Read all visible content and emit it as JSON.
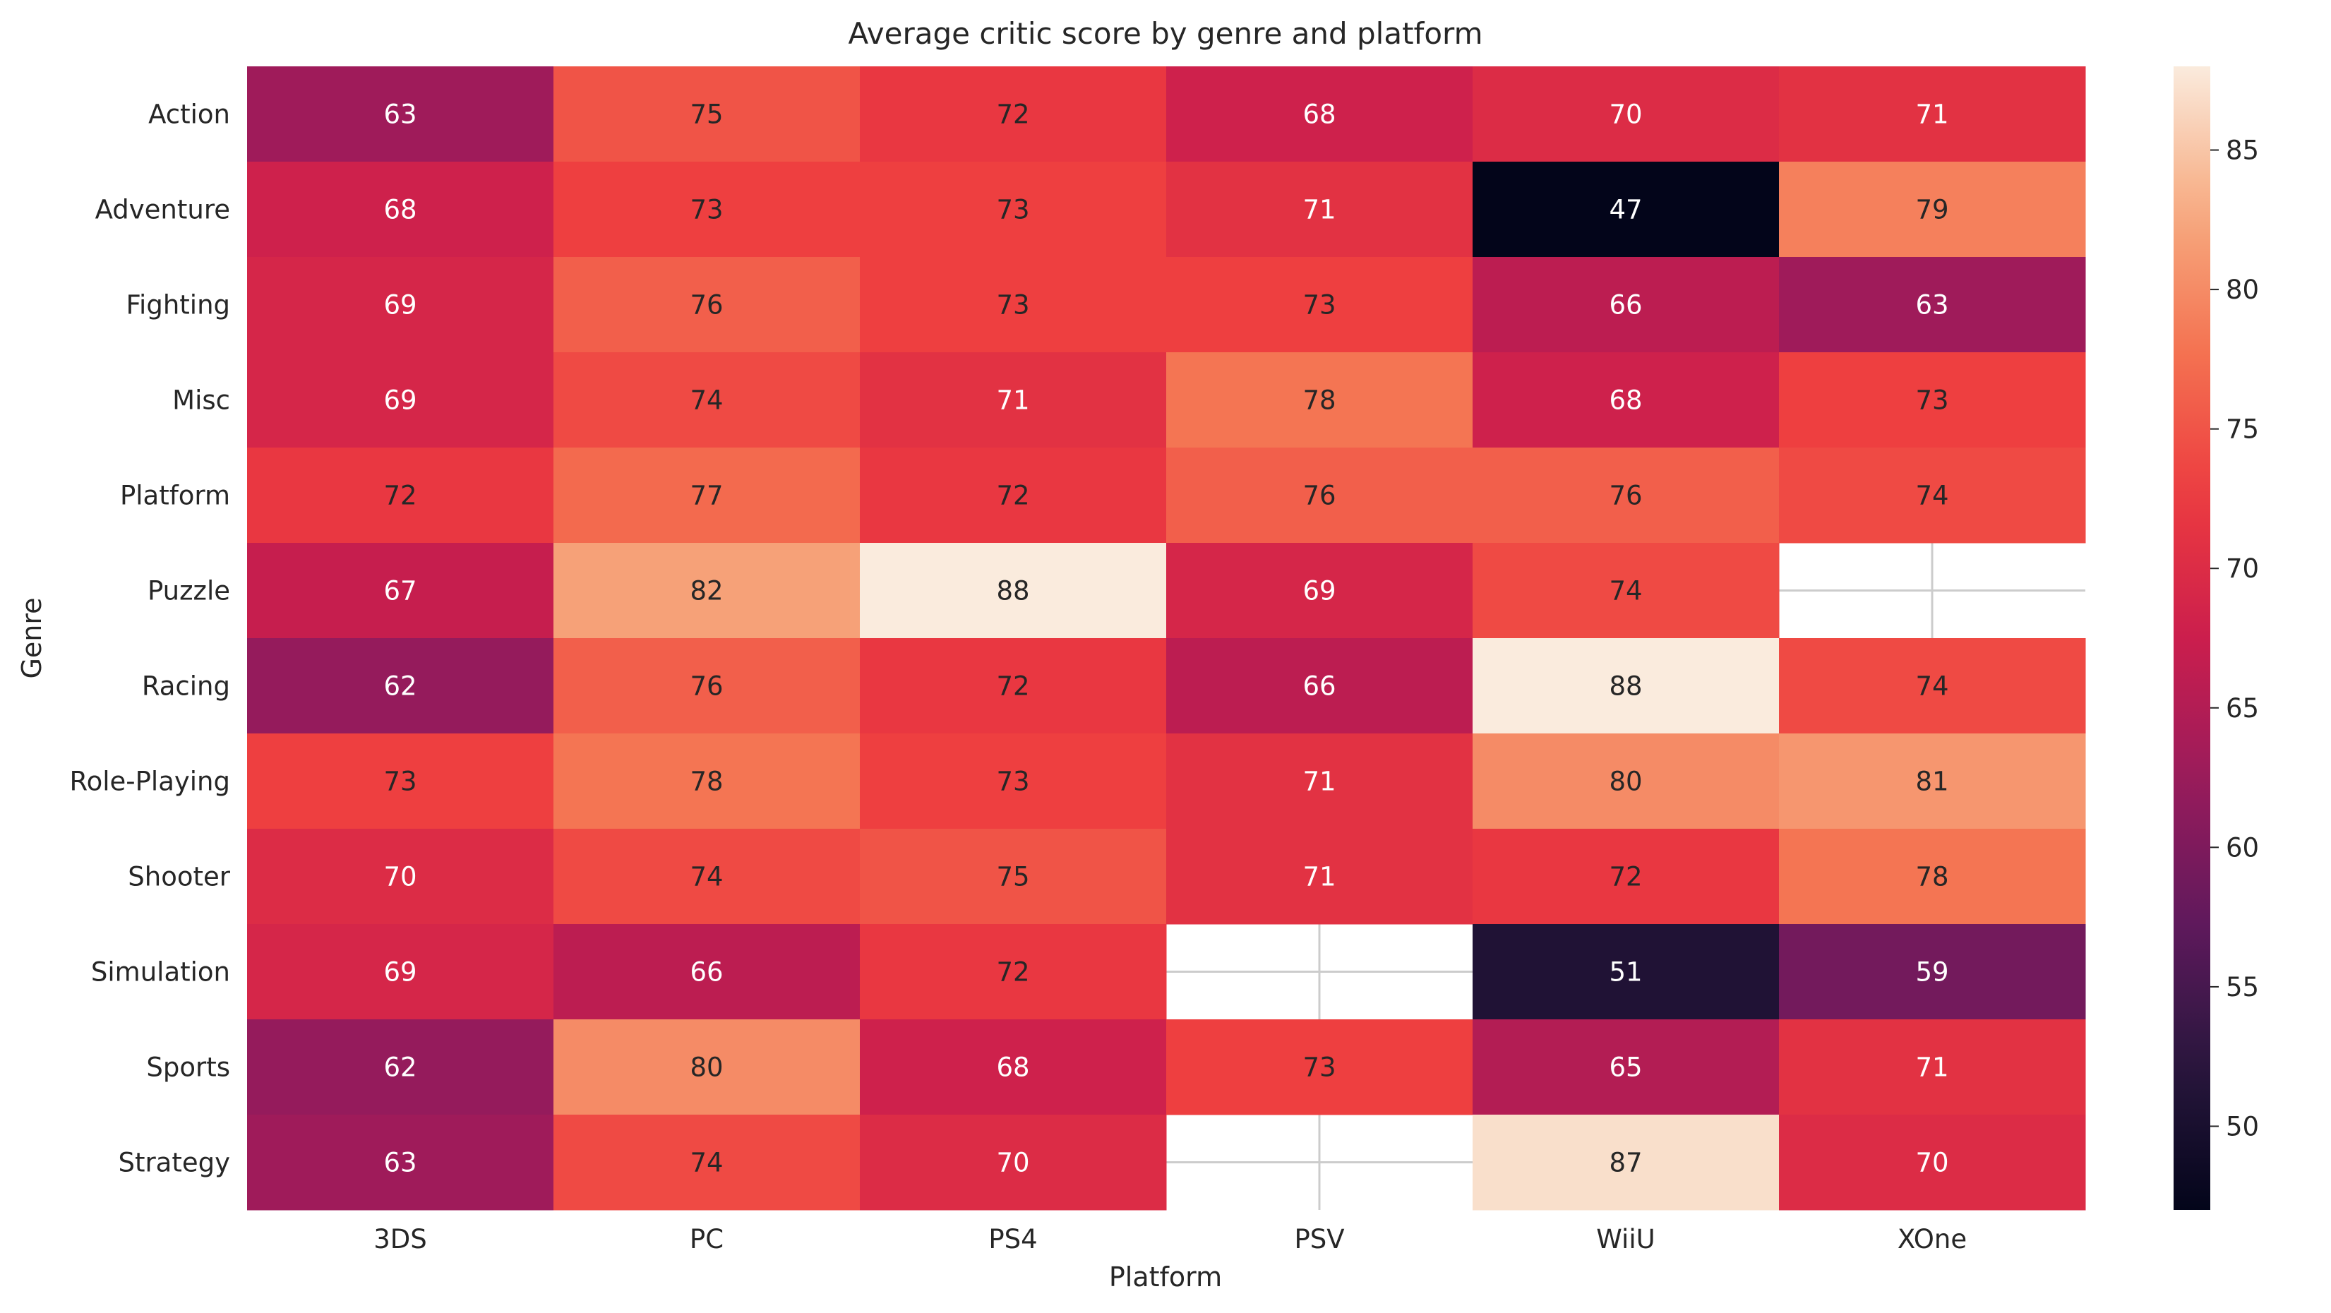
{
  "chart_data": {
    "type": "heatmap",
    "title": "Average critic score by genre and platform",
    "xlabel": "Platform",
    "ylabel": "Genre",
    "x": [
      "3DS",
      "PC",
      "PS4",
      "PSV",
      "WiiU",
      "XOne"
    ],
    "y": [
      "Action",
      "Adventure",
      "Fighting",
      "Misc",
      "Platform",
      "Puzzle",
      "Racing",
      "Role-Playing",
      "Shooter",
      "Simulation",
      "Sports",
      "Strategy"
    ],
    "values": [
      [
        63,
        75,
        72,
        68,
        70,
        71
      ],
      [
        68,
        73,
        73,
        71,
        47,
        79
      ],
      [
        69,
        76,
        73,
        73,
        66,
        63
      ],
      [
        69,
        74,
        71,
        78,
        68,
        73
      ],
      [
        72,
        77,
        72,
        76,
        76,
        74
      ],
      [
        67,
        82,
        88,
        69,
        74,
        null
      ],
      [
        62,
        76,
        72,
        66,
        88,
        74
      ],
      [
        73,
        78,
        73,
        71,
        80,
        81
      ],
      [
        70,
        74,
        75,
        71,
        72,
        78
      ],
      [
        69,
        66,
        72,
        null,
        51,
        59
      ],
      [
        62,
        80,
        68,
        73,
        65,
        71
      ],
      [
        63,
        74,
        70,
        null,
        87,
        70
      ]
    ],
    "colormap": "rocket",
    "colorbar": {
      "min": 47,
      "max": 88,
      "ticks": [
        "50",
        "55",
        "60",
        "65",
        "70",
        "75",
        "80",
        "85"
      ]
    },
    "annotations": true,
    "grid": true
  }
}
